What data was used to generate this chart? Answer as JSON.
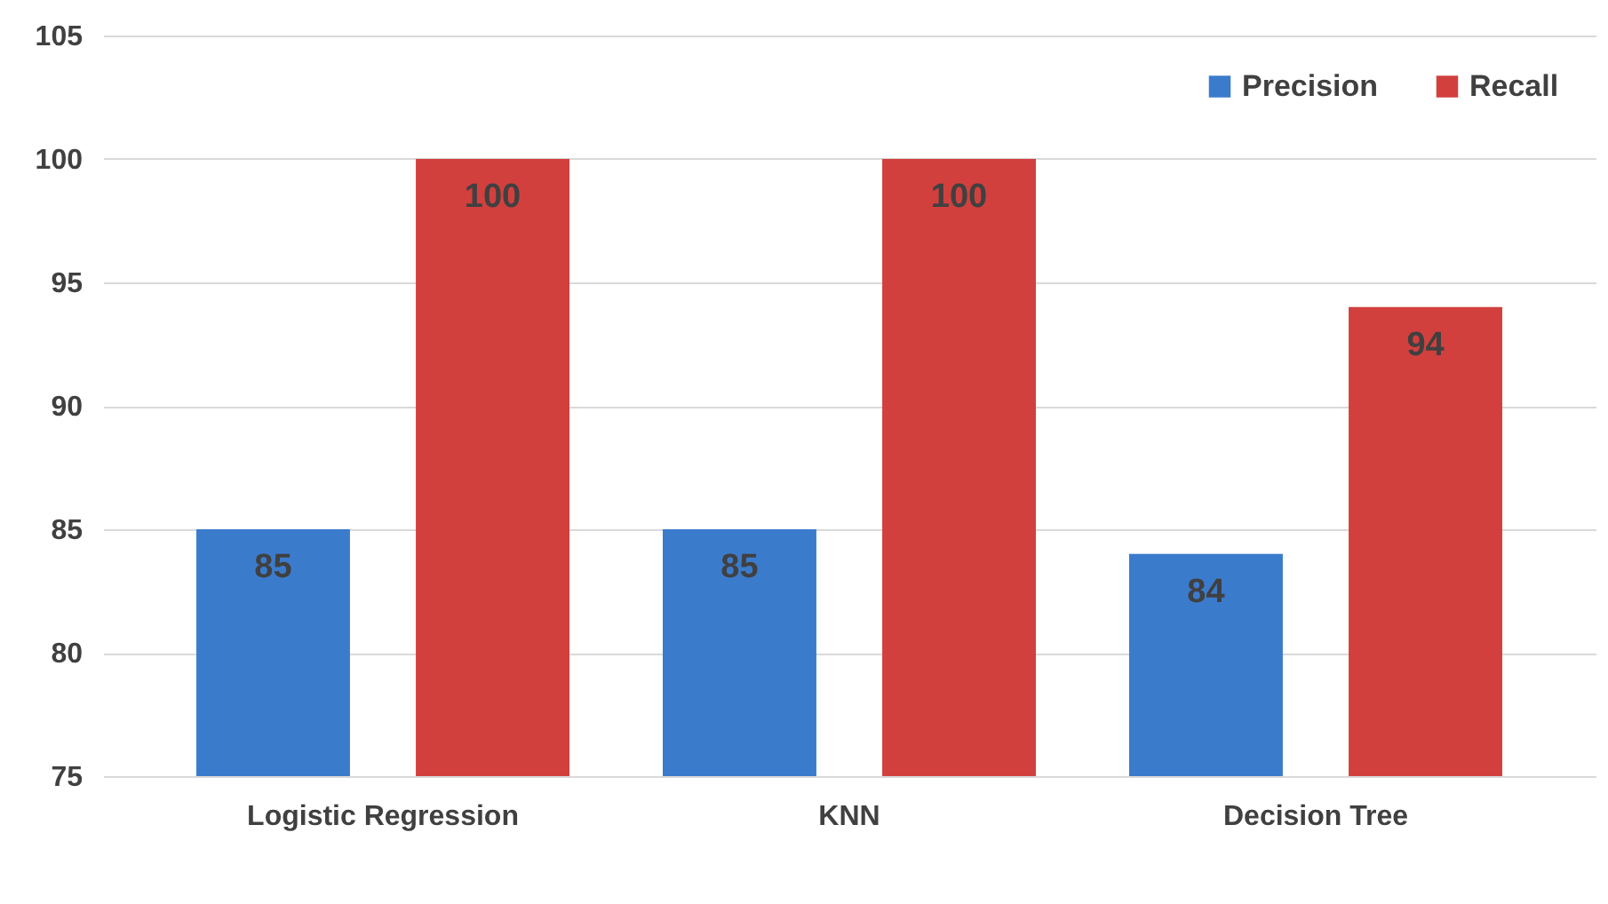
{
  "chart_data": {
    "type": "bar",
    "categories": [
      "Logistic Regression",
      "KNN",
      "Decision Tree"
    ],
    "series": [
      {
        "name": "Precision",
        "color": "#3b7bcc",
        "values": [
          85,
          85,
          84
        ]
      },
      {
        "name": "Recall",
        "color": "#d2403e",
        "values": [
          100,
          100,
          94
        ]
      }
    ],
    "ylim": [
      75,
      105
    ],
    "yticks": [
      75,
      80,
      85,
      90,
      95,
      100,
      105
    ],
    "grid": "y",
    "legend": "top right",
    "data_labels": true
  }
}
